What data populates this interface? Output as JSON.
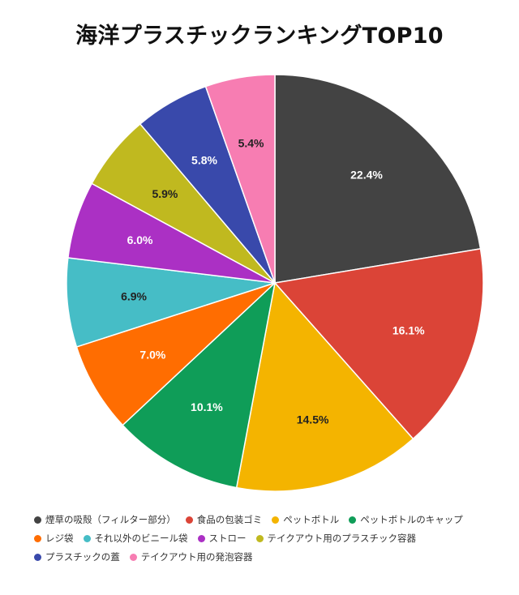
{
  "chart_data": {
    "type": "pie",
    "title": "海洋プラスチックランキングTOP10",
    "legend_position": "bottom",
    "slices": [
      {
        "label": "煙草の吸殻（フィルター部分）",
        "value": 22.4,
        "display": "22.4%",
        "color": "#434343"
      },
      {
        "label": "食品の包装ゴミ",
        "value": 16.1,
        "display": "16.1%",
        "color": "#db4437"
      },
      {
        "label": "ペットボトル",
        "value": 14.5,
        "display": "14.5%",
        "color": "#f4b400"
      },
      {
        "label": "ペットボトルのキャップ",
        "value": 10.1,
        "display": "10.1%",
        "color": "#0f9d58"
      },
      {
        "label": "レジ袋",
        "value": 7.0,
        "display": "7.0%",
        "color": "#ff6d01"
      },
      {
        "label": "それ以外のビニール袋",
        "value": 6.9,
        "display": "6.9%",
        "color": "#46bdc6"
      },
      {
        "label": "ストロー",
        "value": 6.0,
        "display": "6.0%",
        "color": "#ab30c4"
      },
      {
        "label": "テイクアウト用のプラスチック容器",
        "value": 5.9,
        "display": "5.9%",
        "color": "#c0b91f"
      },
      {
        "label": "プラスチックの蓋",
        "value": 5.8,
        "display": "5.8%",
        "color": "#3949ab"
      },
      {
        "label": "テイクアウト用の発泡容器",
        "value": 5.4,
        "display": "5.4%",
        "color": "#f77db2"
      }
    ],
    "label_colors": {
      "dark": "#ffffff",
      "light": "#222222"
    }
  }
}
